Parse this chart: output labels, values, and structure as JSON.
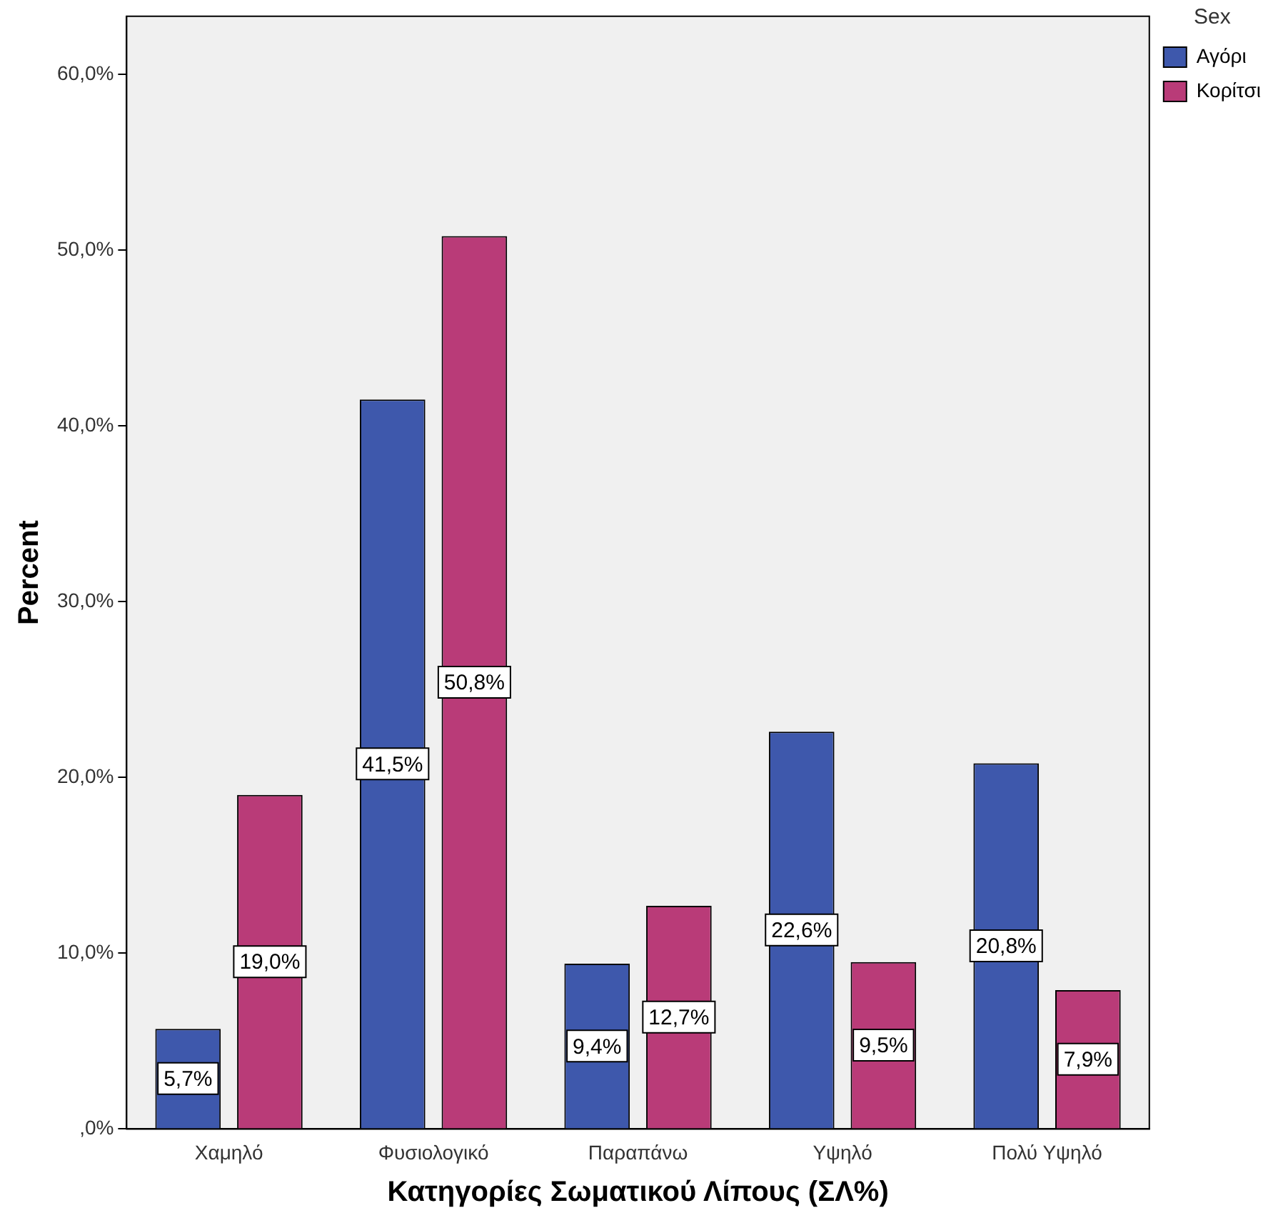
{
  "chart_data": {
    "type": "bar",
    "xlabel": "Κατηγορίες Σωματικού Λίπους (ΣΛ%)",
    "ylabel": "Percent",
    "legend_title": "Sex",
    "legend": "top right",
    "grid": false,
    "categories": [
      "Χαμηλό",
      "Φυσιολογικό",
      "Παραπάνω",
      "Υψηλό",
      "Πολύ Υψηλό"
    ],
    "series": [
      {
        "name": "Αγόρι",
        "color": "#3e58ac",
        "values": [
          5.7,
          41.5,
          9.4,
          22.6,
          20.8
        ],
        "value_labels": [
          "5,7%",
          "41,5%",
          "9,4%",
          "22,6%",
          "20,8%"
        ]
      },
      {
        "name": "Κορίτσι",
        "color": "#b93b78",
        "values": [
          19.0,
          50.8,
          12.7,
          9.5,
          7.9
        ],
        "value_labels": [
          "19,0%",
          "50,8%",
          "12,7%",
          "9,5%",
          "7,9%"
        ]
      }
    ],
    "ylim": [
      0,
      63.3
    ],
    "yticks": [
      {
        "value": 0,
        "label": ",0%"
      },
      {
        "value": 10,
        "label": "10,0%"
      },
      {
        "value": 20,
        "label": "20,0%"
      },
      {
        "value": 30,
        "label": "30,0%"
      },
      {
        "value": 40,
        "label": "40,0%"
      },
      {
        "value": 50,
        "label": "50,0%"
      },
      {
        "value": 60,
        "label": "60,0%"
      }
    ]
  }
}
